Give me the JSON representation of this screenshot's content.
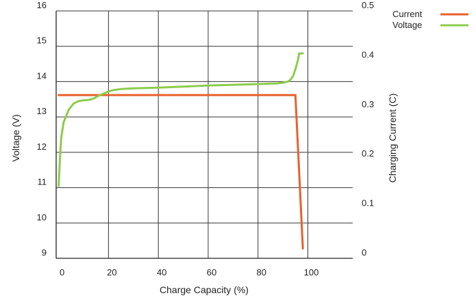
{
  "chart_data": {
    "type": "line",
    "xlabel": "Charge Capacity (%)",
    "ylabel_left": "Voltage (V)",
    "ylabel_right": "Charging Current (C)",
    "x_ticks": [
      "0",
      "20",
      "40",
      "60",
      "80",
      "100"
    ],
    "y_left_ticks": [
      "9",
      "10",
      "11",
      "12",
      "13",
      "14",
      "15",
      "16"
    ],
    "y_right_ticks": [
      "0",
      "0.1",
      "0.2",
      "0.3",
      "0.4",
      "0.5"
    ],
    "xlim": [
      -1,
      118
    ],
    "ylim_left": [
      9,
      16
    ],
    "ylim_right": [
      0,
      0.5
    ],
    "grid": true,
    "legend_position": "top-right",
    "series": [
      {
        "name": "Current",
        "axis": "right",
        "color": "#e8602c",
        "x": [
          0,
          94,
          95,
          98
        ],
        "y": [
          0.33,
          0.33,
          0.33,
          0.02
        ]
      },
      {
        "name": "Voltage",
        "axis": "left",
        "color": "#8ccc4a",
        "x": [
          0,
          0.5,
          1,
          2,
          4,
          6,
          8,
          10,
          12,
          14,
          16,
          18,
          20,
          22,
          25,
          30,
          40,
          50,
          60,
          70,
          80,
          88,
          90,
          92,
          93,
          94,
          95,
          96,
          96.5,
          97,
          98
        ],
        "y": [
          11.05,
          11.8,
          12.4,
          12.85,
          13.2,
          13.38,
          13.45,
          13.47,
          13.48,
          13.52,
          13.6,
          13.66,
          13.72,
          13.76,
          13.79,
          13.81,
          13.83,
          13.86,
          13.89,
          13.91,
          13.93,
          13.95,
          13.97,
          14.0,
          14.05,
          14.15,
          14.35,
          14.6,
          14.8,
          14.8,
          14.8
        ]
      }
    ]
  }
}
